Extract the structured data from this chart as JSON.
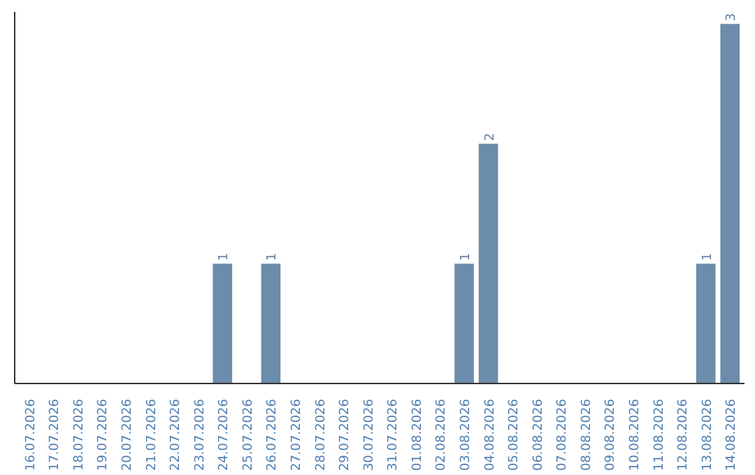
{
  "chart_data": {
    "type": "bar",
    "categories": [
      "16.07.2026",
      "17.07.2026",
      "18.07.2026",
      "19.07.2026",
      "20.07.2026",
      "21.07.2026",
      "22.07.2026",
      "23.07.2026",
      "24.07.2026",
      "25.07.2026",
      "26.07.2026",
      "27.07.2026",
      "28.07.2026",
      "29.07.2026",
      "30.07.2026",
      "31.07.2026",
      "01.08.2026",
      "02.08.2026",
      "03.08.2026",
      "04.08.2026",
      "05.08.2026",
      "06.08.2026",
      "07.08.2026",
      "08.08.2026",
      "09.08.2026",
      "10.08.2026",
      "11.08.2026",
      "12.08.2026",
      "13.08.2026",
      "14.08.2026"
    ],
    "values": [
      0,
      0,
      0,
      0,
      0,
      0,
      0,
      0,
      1,
      0,
      1,
      0,
      0,
      0,
      0,
      0,
      0,
      0,
      1,
      2,
      0,
      0,
      0,
      0,
      0,
      0,
      0,
      0,
      1,
      3
    ],
    "value_labels": [
      null,
      null,
      null,
      null,
      null,
      null,
      null,
      null,
      "1",
      null,
      "1",
      null,
      null,
      null,
      null,
      null,
      null,
      null,
      "1",
      "2",
      null,
      null,
      null,
      null,
      null,
      null,
      null,
      null,
      "1",
      "3"
    ],
    "color": "#6b8caa",
    "ylim": [
      0,
      3.1
    ],
    "tick_labels": "x"
  }
}
